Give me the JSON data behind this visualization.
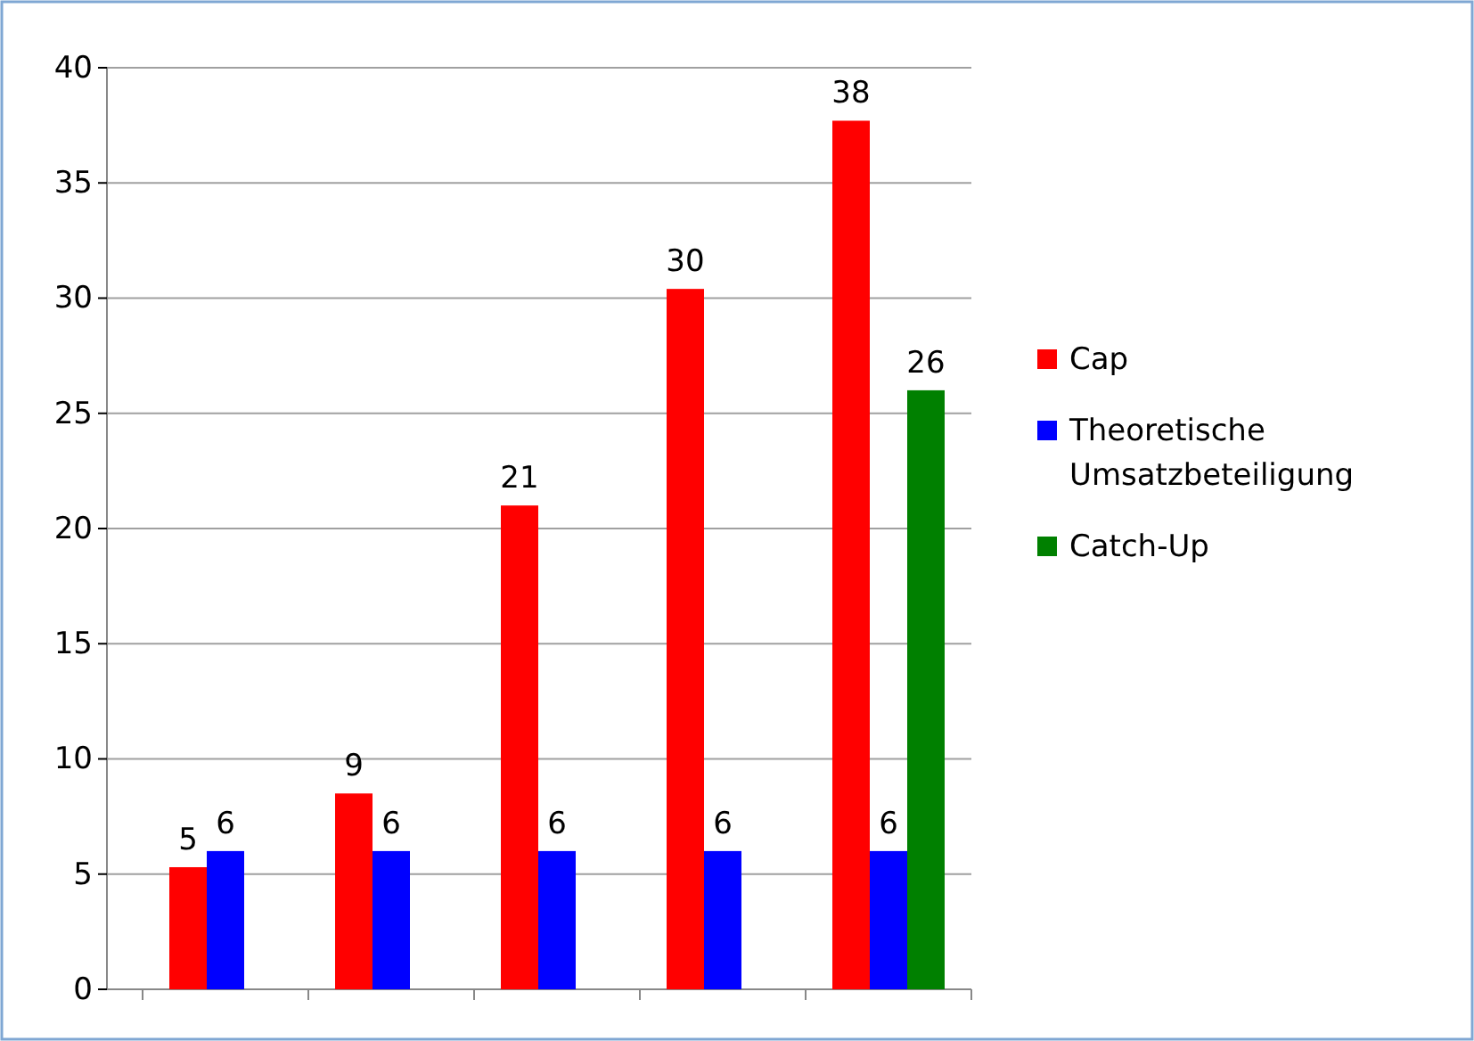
{
  "chart_data": {
    "type": "bar",
    "categories": [
      null,
      null,
      null,
      null,
      null
    ],
    "series": [
      {
        "name": "Cap",
        "color": "#ff0000",
        "values": [
          5.3,
          8.5,
          21,
          30.4,
          37.7
        ],
        "value_labels": [
          "5",
          "9",
          "21",
          "30",
          "38"
        ]
      },
      {
        "name": "Theoretische Umsatzbeteiligung",
        "color": "#0000ff",
        "values": [
          6,
          6,
          6,
          6,
          6
        ],
        "value_labels": [
          "6",
          "6",
          "6",
          "6",
          "6"
        ]
      },
      {
        "name": "Catch-Up",
        "color": "#008000",
        "values": [
          null,
          null,
          null,
          null,
          26
        ],
        "value_labels": [
          null,
          null,
          null,
          null,
          "26"
        ]
      }
    ],
    "ylim": [
      0,
      40
    ],
    "yticks": [
      0,
      5,
      10,
      15,
      20,
      25,
      30,
      35,
      40
    ],
    "grid": "y",
    "legend": "right"
  }
}
